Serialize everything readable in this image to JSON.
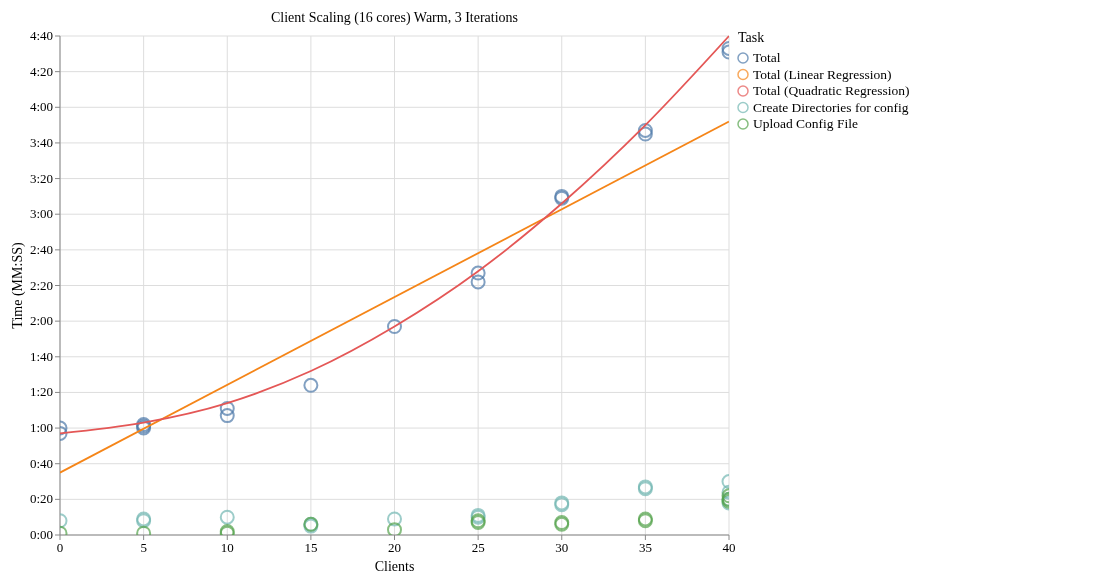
{
  "chart_data": {
    "type": "scatter",
    "title": "Client Scaling (16 cores) Warm, 3 Iterations",
    "xlabel": "Clients",
    "ylabel": "Time (MM:SS)",
    "legend_title": "Task",
    "legend": "right",
    "grid": true,
    "xlim": [
      0,
      40
    ],
    "xticks": [
      0,
      5,
      10,
      15,
      20,
      25,
      30,
      35,
      40
    ],
    "ylim": [
      0,
      280
    ],
    "yticks": [
      {
        "value": 0,
        "label": "0:00"
      },
      {
        "value": 20,
        "label": "0:20"
      },
      {
        "value": 40,
        "label": "0:40"
      },
      {
        "value": 60,
        "label": "1:00"
      },
      {
        "value": 80,
        "label": "1:20"
      },
      {
        "value": 100,
        "label": "1:40"
      },
      {
        "value": 120,
        "label": "2:00"
      },
      {
        "value": 140,
        "label": "2:20"
      },
      {
        "value": 160,
        "label": "2:40"
      },
      {
        "value": 180,
        "label": "3:00"
      },
      {
        "value": 200,
        "label": "3:20"
      },
      {
        "value": 220,
        "label": "3:40"
      },
      {
        "value": 240,
        "label": "4:00"
      },
      {
        "value": 260,
        "label": "4:20"
      },
      {
        "value": 280,
        "label": "4:40"
      }
    ],
    "series": [
      {
        "name": "Total",
        "color": "#4c78a8",
        "marker": "circle",
        "x": [
          0,
          0,
          5,
          5,
          5,
          10,
          10,
          15,
          20,
          25,
          25,
          30,
          30,
          35,
          35,
          40,
          40
        ],
        "values": [
          60,
          57,
          62,
          61,
          60,
          71,
          67,
          84,
          117,
          147,
          142,
          190,
          189,
          227,
          225,
          273,
          271
        ]
      },
      {
        "name": "Total (Linear Regression)",
        "color": "#f58518",
        "type": "line",
        "marker": "none",
        "x": [
          0,
          40
        ],
        "values": [
          35,
          232
        ]
      },
      {
        "name": "Total (Quadratic Regression)",
        "color": "#e45756",
        "type": "line",
        "marker": "none",
        "x": [
          0,
          5,
          10,
          15,
          20,
          25,
          30,
          35,
          40
        ],
        "values": [
          57,
          63,
          74,
          92,
          117,
          148,
          186,
          230,
          280
        ]
      },
      {
        "name": "Create Directories for config",
        "color": "#72b7b2",
        "marker": "circle",
        "x": [
          0,
          5,
          5,
          10,
          15,
          15,
          20,
          25,
          25,
          30,
          30,
          35,
          35,
          40,
          40,
          40,
          40
        ],
        "values": [
          8,
          9,
          8,
          10,
          6,
          5,
          9,
          11,
          10,
          18,
          17,
          27,
          26,
          30,
          24,
          20,
          18
        ]
      },
      {
        "name": "Upload Config File",
        "color": "#54a24b",
        "marker": "circle",
        "x": [
          0,
          5,
          10,
          10,
          15,
          20,
          25,
          25,
          30,
          30,
          35,
          35,
          40,
          40,
          40
        ],
        "values": [
          1,
          1,
          1,
          2,
          6,
          3,
          8,
          7,
          7,
          6,
          9,
          8,
          22,
          20,
          19
        ]
      }
    ]
  }
}
